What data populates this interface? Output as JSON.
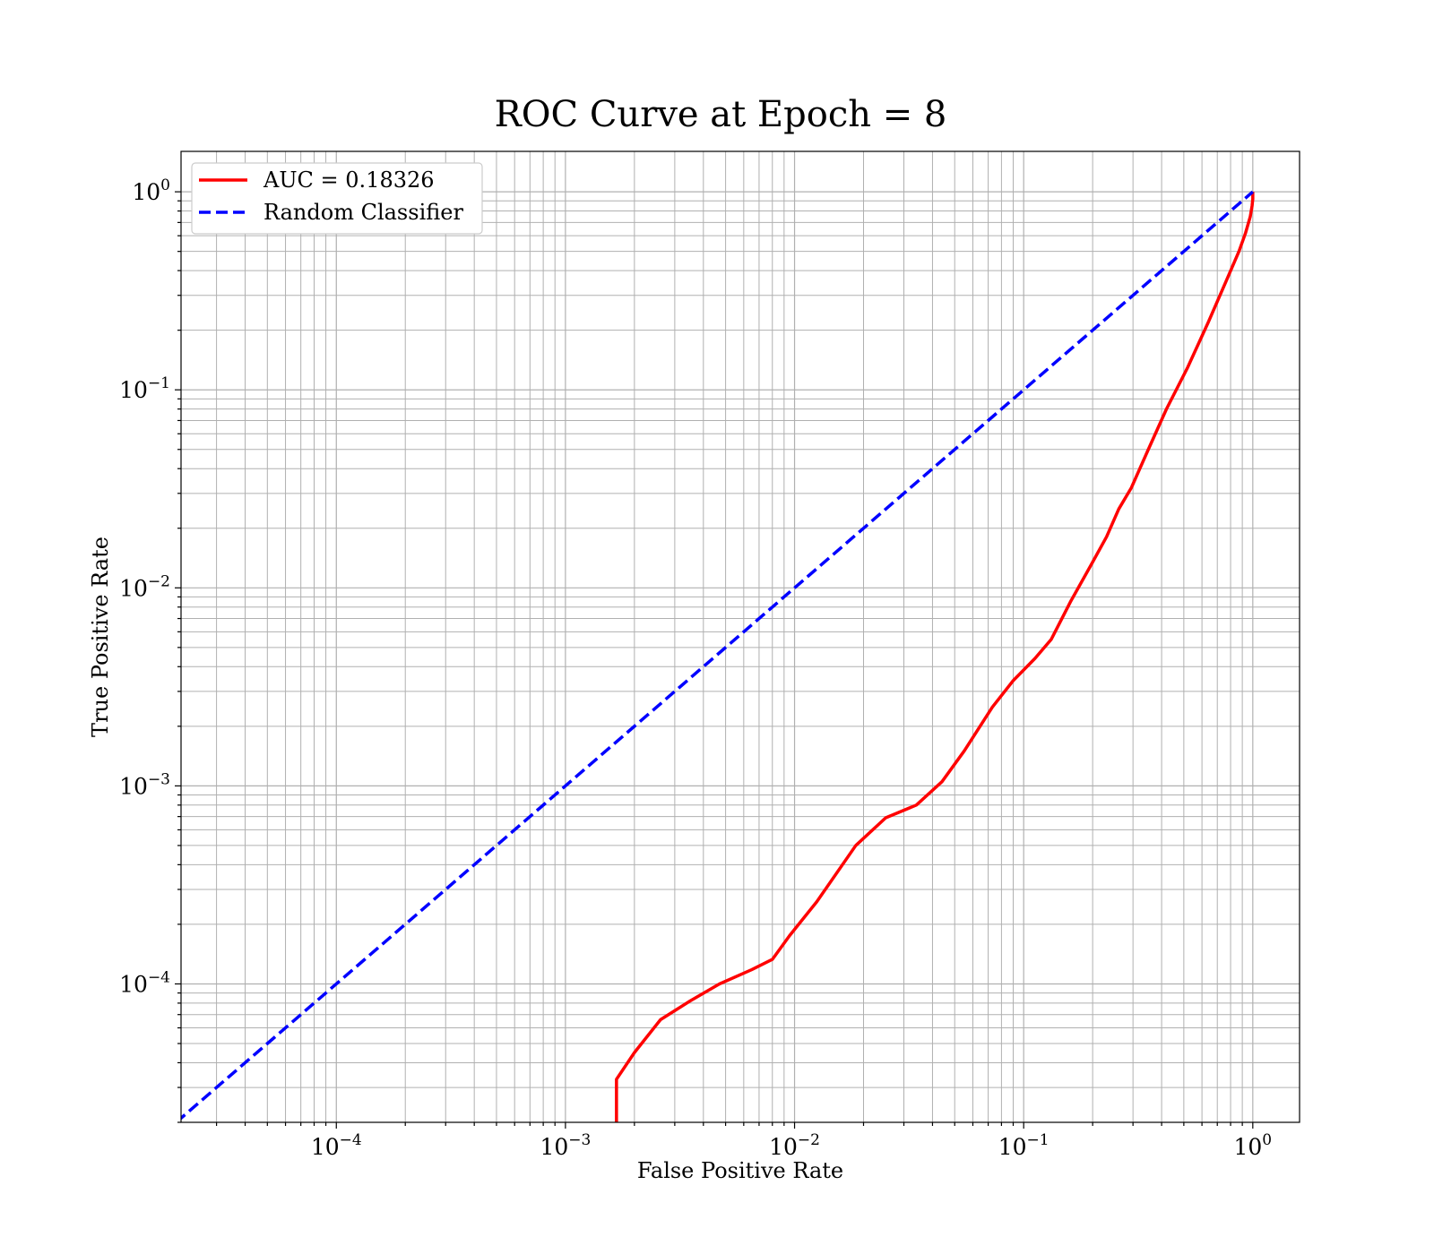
{
  "chart_data": {
    "type": "line",
    "title": "ROC Curve at Epoch = 8",
    "xlabel": "False Positive Rate",
    "ylabel": "True Positive Rate",
    "xscale": "log",
    "yscale": "log",
    "xlim": [
      2.1e-05,
      1.6
    ],
    "ylim": [
      2e-05,
      1.6
    ],
    "grid": "on (major and minor)",
    "legend_position": "top-left",
    "x_ticks": [
      {
        "base": "10",
        "exp": "−4"
      },
      {
        "base": "10",
        "exp": "−3"
      },
      {
        "base": "10",
        "exp": "−2"
      },
      {
        "base": "10",
        "exp": "−1"
      },
      {
        "base": "10",
        "exp": "0"
      }
    ],
    "y_ticks": [
      {
        "base": "10",
        "exp": "−4"
      },
      {
        "base": "10",
        "exp": "−3"
      },
      {
        "base": "10",
        "exp": "−2"
      },
      {
        "base": "10",
        "exp": "−1"
      },
      {
        "base": "10",
        "exp": "0"
      }
    ],
    "series": [
      {
        "name": "AUC = 0.18326",
        "color": "#ff0000",
        "style": "solid",
        "x": [
          0.00167,
          0.00167,
          0.002,
          0.0026,
          0.0035,
          0.0047,
          0.0065,
          0.008,
          0.0095,
          0.0125,
          0.0185,
          0.025,
          0.034,
          0.044,
          0.055,
          0.073,
          0.09,
          0.112,
          0.132,
          0.16,
          0.195,
          0.23,
          0.26,
          0.295,
          0.35,
          0.42,
          0.52,
          0.64,
          0.77,
          0.87,
          0.93,
          0.975,
          0.993,
          1.0,
          1.0
        ],
        "y": [
          2e-05,
          3.3e-05,
          4.5e-05,
          6.6e-05,
          8.2e-05,
          0.0001,
          0.000118,
          0.000133,
          0.000175,
          0.00026,
          0.0005,
          0.00069,
          0.0008,
          0.00105,
          0.0015,
          0.0025,
          0.0034,
          0.0044,
          0.0055,
          0.0085,
          0.0128,
          0.0181,
          0.025,
          0.032,
          0.05,
          0.08,
          0.13,
          0.22,
          0.36,
          0.5,
          0.62,
          0.75,
          0.85,
          0.92,
          1.0
        ]
      },
      {
        "name": "Random Classifier",
        "color": "#0000ff",
        "style": "dashed",
        "x": [
          2e-05,
          1.0
        ],
        "y": [
          2e-05,
          1.0
        ]
      }
    ]
  }
}
